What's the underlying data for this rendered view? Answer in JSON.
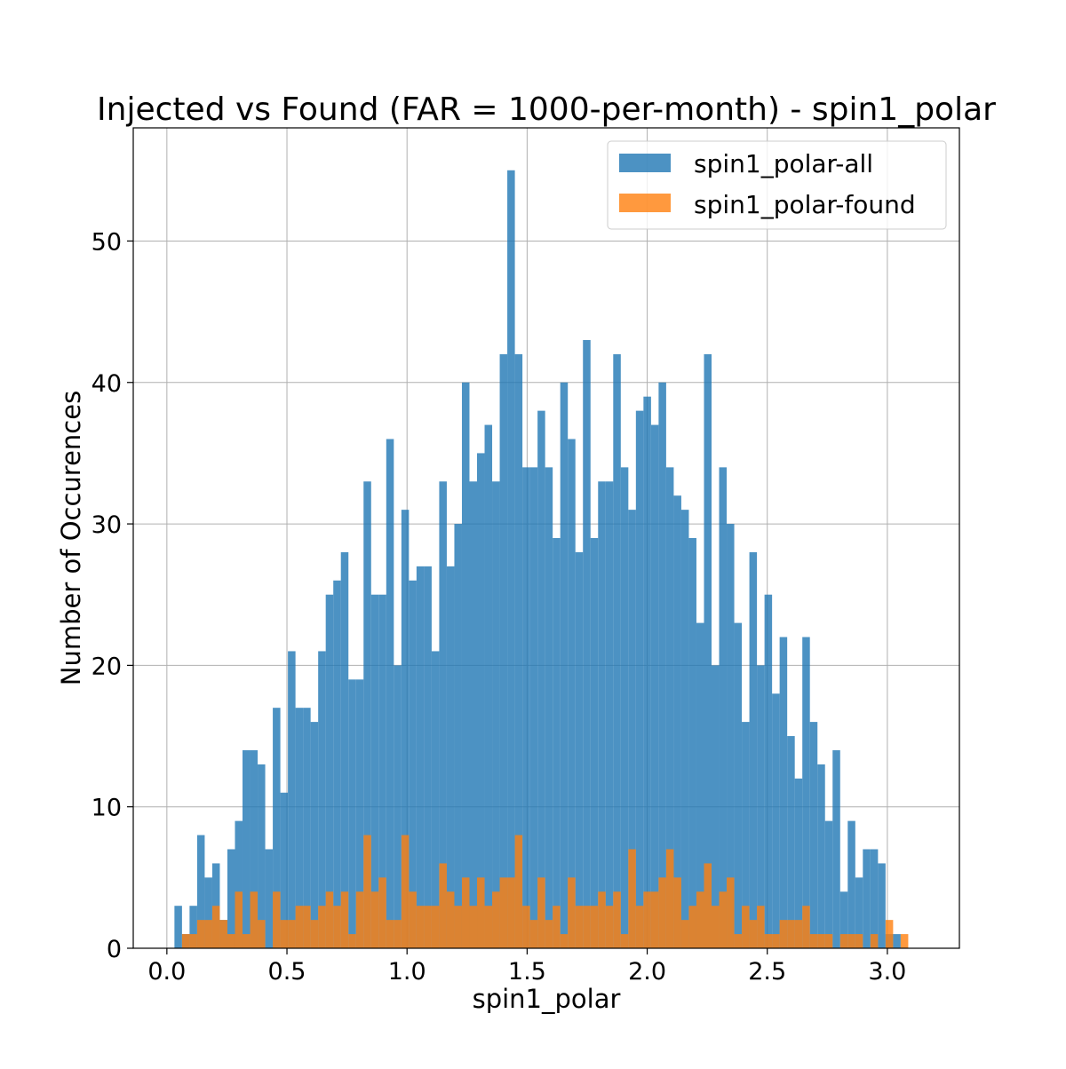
{
  "chart_data": {
    "type": "bar",
    "title": "Injected vs Found (FAR = 1000-per-month) - spin1_polar",
    "xlabel": "spin1_polar",
    "ylabel": "Number of Occurences",
    "xlim": [
      -0.14,
      3.3
    ],
    "ylim": [
      0,
      58
    ],
    "grid": true,
    "legend_position": "top-right",
    "bin_start": 0.0,
    "bin_width": 0.0315,
    "xticks": [
      {
        "value": 0.0,
        "label": "0.0"
      },
      {
        "value": 0.5,
        "label": "0.5"
      },
      {
        "value": 1.0,
        "label": "1.0"
      },
      {
        "value": 1.5,
        "label": "1.5"
      },
      {
        "value": 2.0,
        "label": "2.0"
      },
      {
        "value": 2.5,
        "label": "2.5"
      },
      {
        "value": 3.0,
        "label": "3.0"
      }
    ],
    "yticks": [
      {
        "value": 0,
        "label": "0"
      },
      {
        "value": 10,
        "label": "10"
      },
      {
        "value": 20,
        "label": "20"
      },
      {
        "value": 30,
        "label": "30"
      },
      {
        "value": 40,
        "label": "40"
      },
      {
        "value": 50,
        "label": "50"
      }
    ],
    "series": [
      {
        "name": "spin1_polar-all",
        "color": "#1f77b4",
        "opacity": 0.8,
        "values": [
          0,
          3,
          1,
          3,
          8,
          5,
          6,
          2,
          7,
          9,
          14,
          14,
          13,
          7,
          17,
          11,
          21,
          17,
          17,
          16,
          21,
          25,
          26,
          28,
          19,
          19,
          33,
          25,
          25,
          36,
          20,
          31,
          26,
          27,
          27,
          21,
          33,
          27,
          30,
          40,
          33,
          35,
          37,
          33,
          42,
          55,
          42,
          34,
          34,
          38,
          34,
          29,
          40,
          36,
          28,
          43,
          29,
          33,
          33,
          42,
          34,
          31,
          38,
          39,
          37,
          40,
          34,
          32,
          31,
          29,
          23,
          42,
          20,
          34,
          30,
          23,
          16,
          28,
          20,
          25,
          18,
          22,
          15,
          12,
          22,
          16,
          13,
          9,
          14,
          4,
          9,
          5,
          7,
          7,
          6,
          1,
          1,
          0
        ]
      },
      {
        "name": "spin1_polar-found",
        "color": "#ff7f0e",
        "opacity": 0.8,
        "values": [
          0,
          0,
          1,
          1,
          2,
          2,
          3,
          2,
          1,
          4,
          1,
          4,
          2,
          0,
          4,
          2,
          2,
          3,
          3,
          2,
          3,
          4,
          3,
          4,
          1,
          4,
          8,
          4,
          5,
          2,
          2,
          8,
          4,
          3,
          3,
          3,
          6,
          4,
          3,
          5,
          3,
          5,
          3,
          4,
          5,
          5,
          8,
          3,
          2,
          5,
          2,
          3,
          1,
          5,
          3,
          3,
          3,
          4,
          3,
          4,
          1,
          7,
          3,
          4,
          4,
          5,
          7,
          5,
          2,
          3,
          4,
          6,
          3,
          4,
          5,
          1,
          3,
          2,
          3,
          1,
          1,
          2,
          2,
          2,
          3,
          1,
          1,
          1,
          0,
          1,
          1,
          1,
          0,
          1,
          0,
          2,
          0,
          1
        ]
      }
    ]
  }
}
